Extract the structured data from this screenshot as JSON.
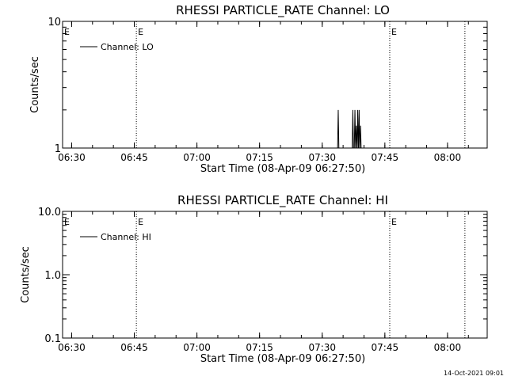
{
  "footer": {
    "timestamp": "14-Oct-2021 09:01"
  },
  "chart_data": [
    {
      "type": "line",
      "title": "RHESSI PARTICLE_RATE Channel: LO",
      "xlabel": "Start Time (08-Apr-09 06:27:50)",
      "ylabel": "Counts/sec",
      "x_ticks": [
        "06:30",
        "06:45",
        "07:00",
        "07:15",
        "07:30",
        "07:45",
        "08:00"
      ],
      "x_range": [
        "06:27:50",
        "08:09:30"
      ],
      "yscale": "log",
      "ylim": [
        1,
        10
      ],
      "y_ticks": [
        "1",
        "10"
      ],
      "grid": false,
      "legend": {
        "position": "top-left",
        "entries": [
          "Channel: LO"
        ]
      },
      "markers": [
        {
          "time": "06:45:30",
          "label": "E"
        },
        {
          "time": "07:46:10",
          "label": "E"
        },
        {
          "time": "08:04:10",
          "label": ""
        }
      ],
      "series": [
        {
          "name": "Channel: LO",
          "spikes": [
            {
              "time": "07:33:50",
              "value": 2
            },
            {
              "time": "07:37:20",
              "value": 2
            },
            {
              "time": "07:37:50",
              "value": 2
            },
            {
              "time": "07:38:10",
              "value": 1.5
            },
            {
              "time": "07:38:30",
              "value": 2
            },
            {
              "time": "07:38:50",
              "value": 2
            },
            {
              "time": "07:39:10",
              "value": 1.5
            }
          ]
        }
      ]
    },
    {
      "type": "line",
      "title": "RHESSI PARTICLE_RATE Channel: HI",
      "xlabel": "Start Time (08-Apr-09 06:27:50)",
      "ylabel": "Counts/sec",
      "x_ticks": [
        "06:30",
        "06:45",
        "07:00",
        "07:15",
        "07:30",
        "07:45",
        "08:00"
      ],
      "x_range": [
        "06:27:50",
        "08:09:30"
      ],
      "yscale": "log",
      "ylim": [
        0.1,
        10
      ],
      "y_ticks": [
        "0.1",
        "1.0",
        "10.0"
      ],
      "grid": false,
      "legend": {
        "position": "top-left",
        "entries": [
          "Channel: HI"
        ]
      },
      "markers": [
        {
          "time": "06:45:30",
          "label": "E"
        },
        {
          "time": "07:46:10",
          "label": "E"
        },
        {
          "time": "08:04:10",
          "label": ""
        }
      ],
      "series": [
        {
          "name": "Channel: HI",
          "spikes": []
        }
      ]
    }
  ]
}
